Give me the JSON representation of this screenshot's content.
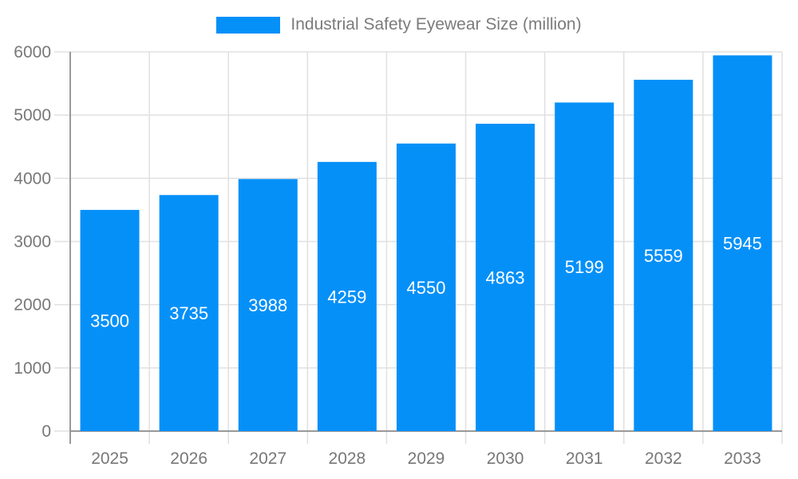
{
  "chart_data": {
    "type": "bar",
    "series_name": "Industrial Safety Eyewear Size (million)",
    "categories": [
      "2025",
      "2026",
      "2027",
      "2028",
      "2029",
      "2030",
      "2031",
      "2032",
      "2033"
    ],
    "values": [
      3500,
      3735,
      3988,
      4259,
      4550,
      4863,
      5199,
      5559,
      5945
    ],
    "value_labels": [
      "3500",
      "3735",
      "3988",
      "4259",
      "4550",
      "4863",
      "5199",
      "5559",
      "5945"
    ],
    "yticks": [
      0,
      1000,
      2000,
      3000,
      4000,
      5000,
      6000
    ],
    "ytick_labels": [
      "0",
      "1000",
      "2000",
      "3000",
      "4000",
      "5000",
      "6000"
    ],
    "ylim": [
      0,
      6000
    ],
    "grid": true,
    "legend_position": "top",
    "colors": {
      "bar": "#0590f8",
      "axis": "#999999",
      "grid": "#e0e0e0",
      "tick_label": "#777777",
      "legend_text": "#7b7b7b",
      "value_label": "#ffffff",
      "background": "#ffffff"
    }
  }
}
